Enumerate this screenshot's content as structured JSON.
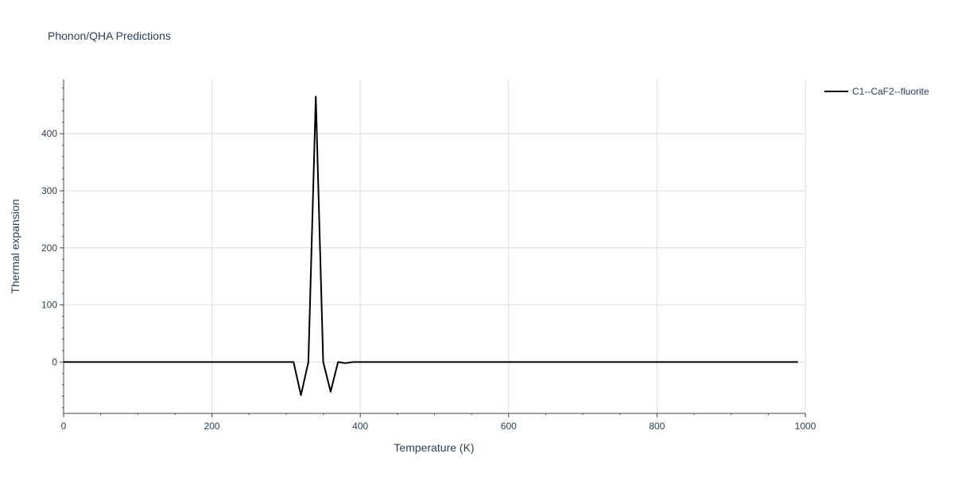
{
  "chart_data": {
    "type": "line",
    "title": "Phonon/QHA Predictions",
    "xlabel": "Temperature (K)",
    "ylabel": "Thermal expansion",
    "xlim": [
      0,
      1000
    ],
    "ylim": [
      -90,
      495
    ],
    "x_ticks": [
      0,
      200,
      400,
      600,
      800,
      1000
    ],
    "y_ticks": [
      0,
      100,
      200,
      300,
      400
    ],
    "x_tick_labels": [
      "0",
      "200",
      "400",
      "600",
      "800",
      "1000"
    ],
    "y_tick_labels": [
      "0",
      "100",
      "200",
      "300",
      "400"
    ],
    "grid": true,
    "legend_position": "top-right",
    "series": [
      {
        "name": "C1--CaF2--fluorite",
        "color": "#000000",
        "x": [
          0,
          100,
          200,
          300,
          310,
          320,
          330,
          340,
          350,
          360,
          370,
          380,
          390,
          400,
          500,
          600,
          700,
          800,
          900,
          990
        ],
        "y": [
          0,
          0,
          0,
          0,
          0,
          -58,
          0,
          465,
          0,
          -52,
          0,
          -2,
          0,
          0,
          0,
          0,
          0,
          0,
          0,
          0
        ]
      }
    ]
  }
}
